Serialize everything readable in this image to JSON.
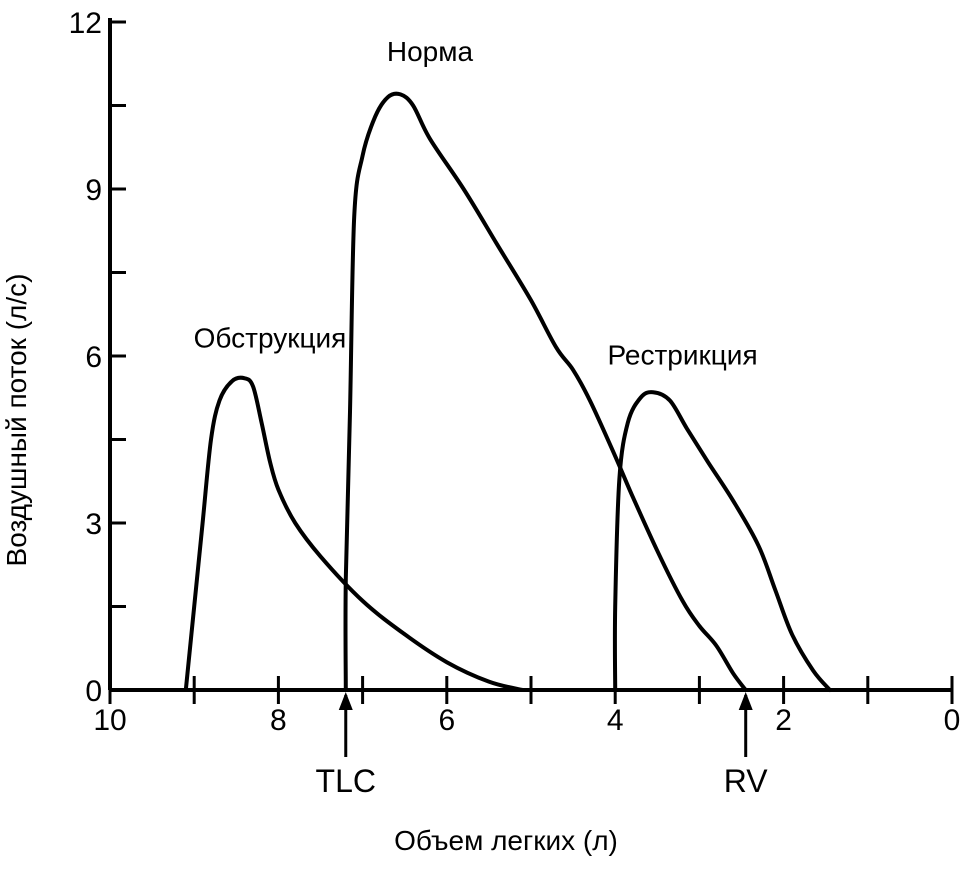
{
  "chart_data": {
    "type": "line",
    "title": "",
    "xlabel": "Объем легких (л)",
    "ylabel": "Воздушный поток (л/с)",
    "xlim": [
      10,
      0
    ],
    "ylim": [
      0,
      12
    ],
    "x_reversed": true,
    "x_ticks": [
      10,
      9,
      8,
      7,
      6,
      5,
      4,
      3,
      2,
      1,
      0
    ],
    "x_tick_labels": [
      {
        "value": 10,
        "label": "10"
      },
      {
        "value": 8,
        "label": "8"
      },
      {
        "value": 6,
        "label": "6"
      },
      {
        "value": 4,
        "label": "4"
      },
      {
        "value": 2,
        "label": "2"
      },
      {
        "value": 0,
        "label": "0"
      }
    ],
    "y_ticks": [
      0,
      1.5,
      3,
      4.5,
      6,
      7.5,
      9,
      10.5,
      12
    ],
    "y_tick_labels": [
      {
        "value": 0,
        "label": "0"
      },
      {
        "value": 3,
        "label": "3"
      },
      {
        "value": 6,
        "label": "6"
      },
      {
        "value": 9,
        "label": "9"
      },
      {
        "value": 12,
        "label": "12"
      }
    ],
    "grid": false,
    "legend": "none",
    "series": [
      {
        "name": "Обструкция",
        "label_at": {
          "x": 8.1,
          "y": 6.15
        },
        "points": [
          [
            9.1,
            0
          ],
          [
            9.0,
            1.5
          ],
          [
            8.9,
            3.0
          ],
          [
            8.8,
            4.5
          ],
          [
            8.7,
            5.2
          ],
          [
            8.55,
            5.55
          ],
          [
            8.4,
            5.6
          ],
          [
            8.3,
            5.45
          ],
          [
            8.2,
            4.8
          ],
          [
            8.1,
            4.1
          ],
          [
            8.0,
            3.6
          ],
          [
            7.8,
            3.0
          ],
          [
            7.5,
            2.4
          ],
          [
            7.0,
            1.6
          ],
          [
            6.5,
            1.0
          ],
          [
            6.0,
            0.5
          ],
          [
            5.5,
            0.15
          ],
          [
            5.1,
            0
          ]
        ]
      },
      {
        "name": "Норма",
        "label_at": {
          "x": 6.2,
          "y": 11.3
        },
        "points": [
          [
            7.2,
            0
          ],
          [
            7.2,
            2.0
          ],
          [
            7.15,
            5.0
          ],
          [
            7.1,
            8.5
          ],
          [
            7.0,
            9.6
          ],
          [
            6.85,
            10.3
          ],
          [
            6.7,
            10.65
          ],
          [
            6.55,
            10.7
          ],
          [
            6.4,
            10.5
          ],
          [
            6.2,
            9.9
          ],
          [
            5.8,
            9.0
          ],
          [
            5.4,
            8.0
          ],
          [
            5.0,
            7.0
          ],
          [
            4.7,
            6.15
          ],
          [
            4.5,
            5.75
          ],
          [
            4.3,
            5.2
          ],
          [
            4.0,
            4.2
          ],
          [
            3.8,
            3.5
          ],
          [
            3.5,
            2.5
          ],
          [
            3.2,
            1.6
          ],
          [
            3.0,
            1.15
          ],
          [
            2.8,
            0.8
          ],
          [
            2.6,
            0.3
          ],
          [
            2.45,
            0
          ]
        ]
      },
      {
        "name": "Рестрикция",
        "label_at": {
          "x": 3.2,
          "y": 5.85
        },
        "points": [
          [
            4.0,
            0
          ],
          [
            4.0,
            1.5
          ],
          [
            3.95,
            3.8
          ],
          [
            3.85,
            4.8
          ],
          [
            3.7,
            5.25
          ],
          [
            3.55,
            5.35
          ],
          [
            3.35,
            5.2
          ],
          [
            3.15,
            4.7
          ],
          [
            2.9,
            4.1
          ],
          [
            2.6,
            3.4
          ],
          [
            2.3,
            2.6
          ],
          [
            2.1,
            1.8
          ],
          [
            1.9,
            1.0
          ],
          [
            1.65,
            0.35
          ],
          [
            1.45,
            0
          ]
        ]
      }
    ],
    "markers": [
      {
        "name": "TLC",
        "x": 7.2
      },
      {
        "name": "RV",
        "x": 2.45
      }
    ]
  }
}
